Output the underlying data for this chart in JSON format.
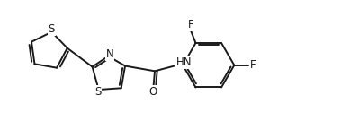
{
  "background": "#ffffff",
  "line_color": "#1a1a1a",
  "line_width": 1.4,
  "font_size_atom": 8.5,
  "figsize": [
    3.89,
    1.54
  ],
  "dpi": 100,
  "xlim": [
    0.0,
    9.5
  ],
  "ylim": [
    0.5,
    4.2
  ]
}
